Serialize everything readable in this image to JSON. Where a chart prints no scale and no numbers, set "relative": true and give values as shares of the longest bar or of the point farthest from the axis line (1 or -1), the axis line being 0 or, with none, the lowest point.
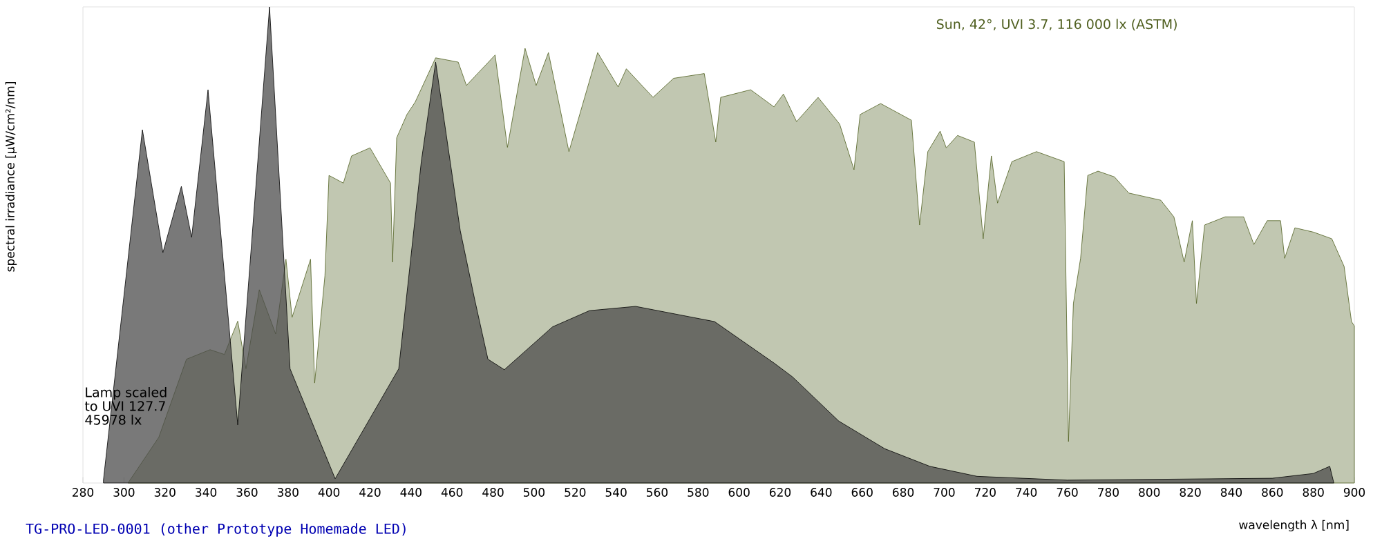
{
  "chart_data": {
    "type": "area",
    "relative": true,
    "xlabel": "wavelength λ [nm]",
    "ylabel": "spectral irradiance [µW/cm²/nm]",
    "xlim": [
      280,
      900
    ],
    "xticks": [
      280,
      300,
      320,
      340,
      360,
      380,
      400,
      420,
      440,
      460,
      480,
      500,
      520,
      540,
      560,
      580,
      600,
      620,
      640,
      660,
      680,
      700,
      720,
      740,
      760,
      780,
      800,
      820,
      840,
      860,
      880,
      900
    ],
    "annotations": [
      "TG-PRO-LED-0001 (other Prototype Homemade LED)"
    ],
    "series": [
      {
        "name": "Sun, 42°, UVI 3.7, 116 000 lx (ASTM)",
        "color": "#4f5f1f",
        "x": [
          302,
          317,
          330.5,
          342,
          349,
          355.5,
          359.5,
          366,
          374,
          379,
          382,
          391,
          393,
          398,
          400,
          407,
          411,
          420,
          430,
          431,
          433,
          438,
          442,
          452,
          463,
          467,
          481,
          487,
          495.6,
          501,
          507,
          517,
          531,
          541,
          545,
          558,
          568,
          583,
          588.6,
          591,
          605.6,
          617,
          621.6,
          628,
          638.5,
          649,
          656,
          659,
          669,
          684,
          688,
          692,
          698,
          701,
          706.5,
          714.7,
          719,
          723,
          726,
          733,
          745,
          758.5,
          760.6,
          763,
          766.5,
          770,
          775,
          783,
          790,
          805.6,
          812,
          817,
          821,
          823,
          827,
          837,
          846,
          851,
          857.5,
          864,
          866,
          871,
          880,
          889,
          895,
          898.6,
          900
        ],
        "values": [
          0,
          0.096,
          0.26,
          0.28,
          0.27,
          0.34,
          0.24,
          0.406,
          0.313,
          0.47,
          0.348,
          0.47,
          0.21,
          0.435,
          0.646,
          0.63,
          0.687,
          0.704,
          0.63,
          0.464,
          0.725,
          0.774,
          0.8,
          0.893,
          0.884,
          0.835,
          0.899,
          0.705,
          0.913,
          0.835,
          0.904,
          0.696,
          0.904,
          0.832,
          0.87,
          0.81,
          0.85,
          0.86,
          0.716,
          0.81,
          0.826,
          0.79,
          0.817,
          0.759,
          0.81,
          0.754,
          0.658,
          0.774,
          0.797,
          0.762,
          0.542,
          0.696,
          0.739,
          0.704,
          0.73,
          0.716,
          0.513,
          0.687,
          0.588,
          0.675,
          0.696,
          0.675,
          0.087,
          0.377,
          0.472,
          0.646,
          0.655,
          0.643,
          0.609,
          0.594,
          0.559,
          0.464,
          0.551,
          0.377,
          0.542,
          0.559,
          0.559,
          0.501,
          0.551,
          0.551,
          0.472,
          0.536,
          0.527,
          0.513,
          0.455,
          0.339,
          0.33
        ]
      },
      {
        "name": "Lamp scaled to UVI 127.7 45978 lx",
        "color": "#000000",
        "x": [
          290,
          309,
          319,
          328,
          333,
          341,
          355.5,
          371,
          381,
          403,
          434,
          445,
          452,
          464,
          471,
          477.5,
          485.5,
          509,
          527,
          549.5,
          588,
          617,
          626,
          648.6,
          671,
          693,
          716,
          760,
          860,
          880,
          888,
          890
        ],
        "values": [
          0.006,
          0.742,
          0.484,
          0.623,
          0.516,
          0.826,
          0.122,
          1.0,
          0.24,
          0.009,
          0.24,
          0.675,
          0.884,
          0.53,
          0.386,
          0.26,
          0.238,
          0.328,
          0.362,
          0.371,
          0.339,
          0.252,
          0.223,
          0.13,
          0.072,
          0.035,
          0.014,
          0.006,
          0.01,
          0.02,
          0.035,
          0
        ]
      }
    ]
  }
}
